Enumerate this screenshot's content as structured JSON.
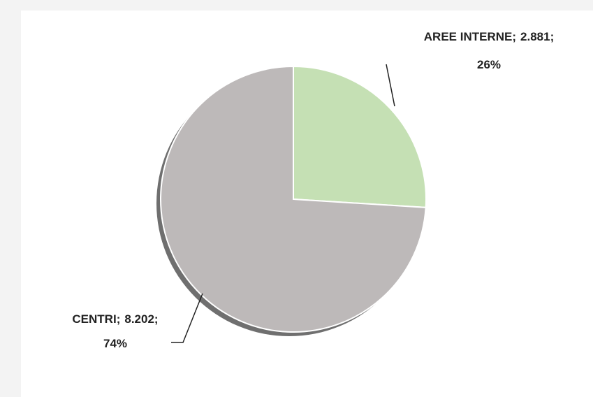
{
  "chart_data": {
    "type": "pie",
    "categories": [
      "AREE INTERNE",
      "CENTRI"
    ],
    "values": [
      2881,
      8202
    ],
    "value_labels": [
      "2.881",
      "8.202"
    ],
    "percents": [
      26,
      74
    ],
    "percent_labels": [
      "26%",
      "74%"
    ],
    "separator": ";",
    "colors": [
      "#c5e0b4",
      "#bdb9b9"
    ]
  }
}
